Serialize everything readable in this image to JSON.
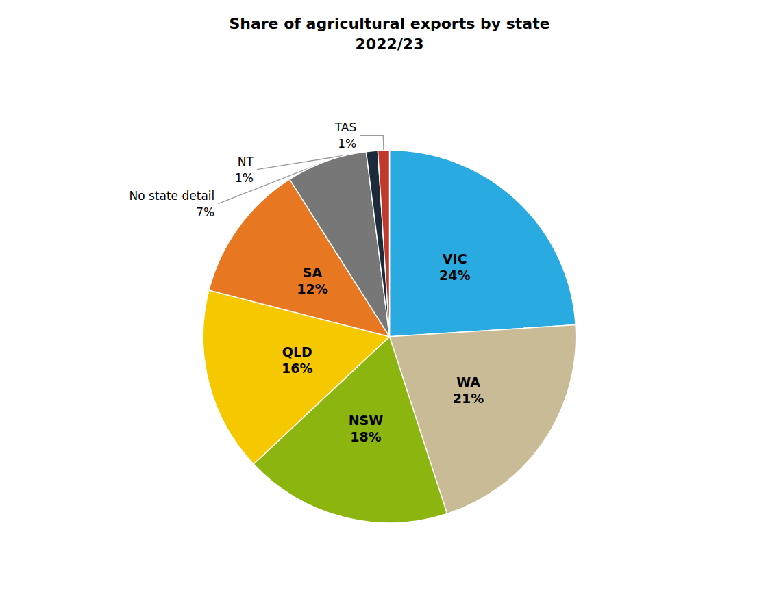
{
  "chart_data": {
    "type": "pie",
    "title": "Share of agricultural exports by state\n2022/23",
    "categories": [
      "VIC",
      "WA",
      "NSW",
      "QLD",
      "SA",
      "No state detail",
      "NT",
      "TAS"
    ],
    "values": [
      24,
      21,
      18,
      16,
      12,
      7,
      1,
      1
    ],
    "value_labels": [
      "24%",
      "21%",
      "18%",
      "16%",
      "12%",
      "7%",
      "1%",
      "1%"
    ],
    "colors": [
      "#29ABE2",
      "#C8BB96",
      "#8DB510",
      "#F5C800",
      "#E87722",
      "#777777",
      "#1C2B39",
      "#C0392B"
    ],
    "data_labels": true
  }
}
